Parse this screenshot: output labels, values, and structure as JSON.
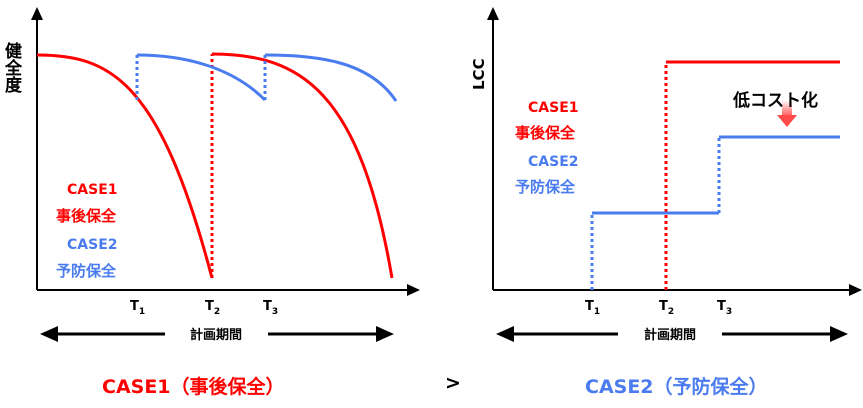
{
  "left": {
    "ylabel": "健全度",
    "ticks": [
      "T",
      "T",
      "T"
    ],
    "tick_subs": [
      "1",
      "2",
      "3"
    ],
    "legend": {
      "case1": "CASE1",
      "case1_sub": "事後保全",
      "case2": "CASE2",
      "case2_sub": "予防保全"
    },
    "period": "計画期間"
  },
  "right": {
    "ylabel": "LCC",
    "ticks": [
      "T",
      "T",
      "T"
    ],
    "tick_subs": [
      "1",
      "2",
      "3"
    ],
    "legend": {
      "case1": "CASE1",
      "case1_sub": "事後保全",
      "case2": "CASE2",
      "case2_sub": "予防保全"
    },
    "period": "計画期間",
    "annotation": "低コスト化"
  },
  "bottom": {
    "left": "CASE1（事後保全）",
    "op": ">",
    "right": "CASE2（予防保全）"
  },
  "colors": {
    "case1": "#ff0000",
    "case2": "#4a7cf0",
    "arrow_fill": "#ff8080"
  }
}
